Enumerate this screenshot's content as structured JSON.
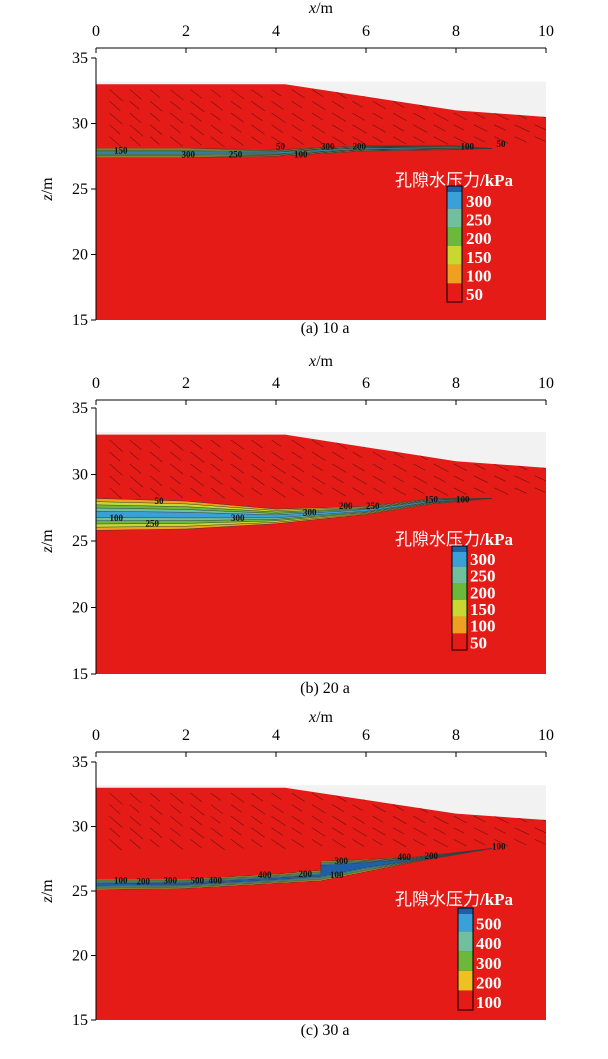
{
  "figure": {
    "x_axis_title_italic": "x",
    "x_axis_title_unit": "/m",
    "y_axis_title_italic": "z",
    "y_axis_title_unit": "/m",
    "legend_title_main": "孔隙水压力",
    "legend_title_unit": "/kPa"
  },
  "colors": {
    "background_field": "#e41b17",
    "sky": "#f2f2f2",
    "ramp": [
      "#e41b17",
      "#f0a020",
      "#c8d830",
      "#6cb83a",
      "#70c0a0",
      "#3aa0d8",
      "#1f5fa8"
    ]
  },
  "chart_data": [
    {
      "type": "heatmap",
      "caption": "(a) 10 a",
      "xlim": [
        0,
        10
      ],
      "ylim": [
        15,
        35
      ],
      "x_ticks": [
        0,
        2,
        4,
        6,
        8,
        10
      ],
      "y_ticks": [
        15,
        20,
        25,
        30,
        35
      ],
      "legend_levels": [
        50,
        100,
        150,
        200,
        250,
        300
      ],
      "surface": [
        [
          0,
          33
        ],
        [
          4.2,
          33
        ],
        [
          8,
          31
        ],
        [
          10,
          30.5
        ]
      ],
      "zone_top": [
        [
          0,
          28.1
        ],
        [
          2,
          28.1
        ],
        [
          4,
          28.0
        ],
        [
          6,
          28.3
        ],
        [
          8,
          28.3
        ],
        [
          8.8,
          28.1
        ]
      ],
      "zone_bottom": [
        [
          0,
          27.4
        ],
        [
          2,
          27.4
        ],
        [
          4,
          27.5
        ],
        [
          6,
          27.9
        ],
        [
          8,
          28.0
        ],
        [
          8.8,
          28.1
        ]
      ],
      "contour_labels": [
        {
          "text": "150",
          "x": 0.4,
          "z": 27.7
        },
        {
          "text": "300",
          "x": 1.9,
          "z": 27.4
        },
        {
          "text": "250",
          "x": 2.95,
          "z": 27.4
        },
        {
          "text": "50",
          "x": 4.0,
          "z": 28.0
        },
        {
          "text": "100",
          "x": 4.4,
          "z": 27.4
        },
        {
          "text": "300",
          "x": 5.0,
          "z": 28.0
        },
        {
          "text": "200",
          "x": 5.7,
          "z": 28.0
        },
        {
          "text": "100",
          "x": 8.1,
          "z": 28.0
        },
        {
          "text": "50",
          "x": 8.9,
          "z": 28.2
        }
      ]
    },
    {
      "type": "heatmap",
      "caption": "(b) 20 a",
      "xlim": [
        0,
        10
      ],
      "ylim": [
        15,
        35
      ],
      "x_ticks": [
        0,
        2,
        4,
        6,
        8,
        10
      ],
      "y_ticks": [
        15,
        20,
        25,
        30,
        35
      ],
      "legend_levels": [
        50,
        100,
        150,
        200,
        250,
        300
      ],
      "surface": [
        [
          0,
          33
        ],
        [
          4.2,
          33
        ],
        [
          8,
          31
        ],
        [
          10,
          30.5
        ]
      ],
      "zone_top": [
        [
          0,
          28.2
        ],
        [
          2,
          28.0
        ],
        [
          4,
          27.4
        ],
        [
          6,
          27.6
        ],
        [
          7.5,
          28.2
        ],
        [
          8.8,
          28.2
        ]
      ],
      "zone_bottom": [
        [
          0,
          25.8
        ],
        [
          2,
          25.9
        ],
        [
          4,
          26.3
        ],
        [
          6,
          27.0
        ],
        [
          7.5,
          27.8
        ],
        [
          8.8,
          28.2
        ]
      ],
      "contour_labels": [
        {
          "text": "50",
          "x": 1.3,
          "z": 27.8
        },
        {
          "text": "100",
          "x": 0.3,
          "z": 26.5
        },
        {
          "text": "250",
          "x": 1.1,
          "z": 26.1
        },
        {
          "text": "300",
          "x": 3.0,
          "z": 26.5
        },
        {
          "text": "300",
          "x": 4.6,
          "z": 26.9
        },
        {
          "text": "200",
          "x": 5.4,
          "z": 27.4
        },
        {
          "text": "250",
          "x": 6.0,
          "z": 27.4
        },
        {
          "text": "150",
          "x": 7.3,
          "z": 27.9
        },
        {
          "text": "100",
          "x": 8.0,
          "z": 27.9
        }
      ]
    },
    {
      "type": "heatmap",
      "caption": "(c) 30 a",
      "xlim": [
        0,
        10
      ],
      "ylim": [
        15,
        35
      ],
      "x_ticks": [
        0,
        2,
        4,
        6,
        8,
        10
      ],
      "y_ticks": [
        15,
        20,
        25,
        30,
        35
      ],
      "legend_levels": [
        100,
        200,
        300,
        400,
        500
      ],
      "surface": [
        [
          0,
          33
        ],
        [
          4.2,
          33
        ],
        [
          8,
          31
        ],
        [
          10,
          30.5
        ]
      ],
      "zone_top": [
        [
          0,
          25.9
        ],
        [
          2,
          25.9
        ],
        [
          4,
          26.3
        ],
        [
          5.0,
          26.6
        ],
        [
          5.0,
          27.3
        ],
        [
          7,
          27.6
        ],
        [
          8.8,
          28.3
        ]
      ],
      "zone_bottom": [
        [
          0,
          25.1
        ],
        [
          2,
          25.2
        ],
        [
          4,
          25.6
        ],
        [
          5.0,
          25.8
        ],
        [
          6,
          26.5
        ],
        [
          7,
          27.2
        ],
        [
          8.8,
          28.3
        ]
      ],
      "contour_labels": [
        {
          "text": "100",
          "x": 0.4,
          "z": 25.6
        },
        {
          "text": "200",
          "x": 0.9,
          "z": 25.5
        },
        {
          "text": "300",
          "x": 1.5,
          "z": 25.6
        },
        {
          "text": "500",
          "x": 2.1,
          "z": 25.6
        },
        {
          "text": "400",
          "x": 2.5,
          "z": 25.6
        },
        {
          "text": "400",
          "x": 3.6,
          "z": 26.0
        },
        {
          "text": "200",
          "x": 4.5,
          "z": 26.1
        },
        {
          "text": "100",
          "x": 5.2,
          "z": 26.0
        },
        {
          "text": "300",
          "x": 5.3,
          "z": 27.1
        },
        {
          "text": "400",
          "x": 6.7,
          "z": 27.4
        },
        {
          "text": "200",
          "x": 7.3,
          "z": 27.5
        },
        {
          "text": "100",
          "x": 8.8,
          "z": 28.2
        }
      ]
    }
  ]
}
